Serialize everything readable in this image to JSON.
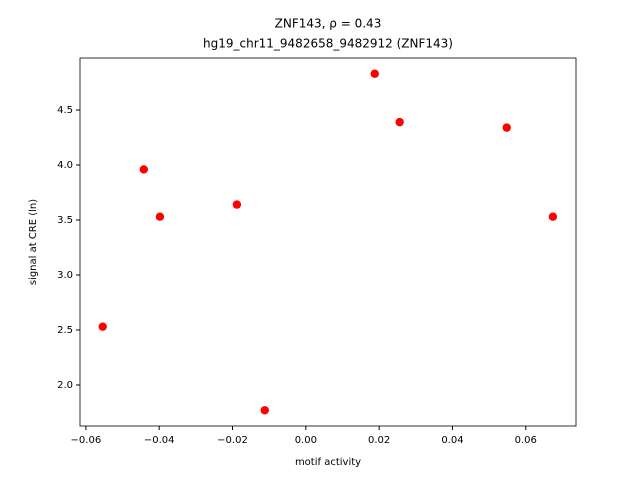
{
  "chart_data": {
    "type": "scatter",
    "title": "ZNF143, ρ = 0.43",
    "subtitle": "hg19_chr11_9482658_9482912 (ZNF143)",
    "x_label": "motif activity",
    "y_label": "signal at CRE (ln)",
    "color": "#ff0000",
    "x": [
      -0.0554,
      -0.0442,
      -0.0398,
      -0.0188,
      -0.0112,
      0.0188,
      0.0256,
      0.0548,
      0.0674
    ],
    "values": [
      2.53,
      3.96,
      3.53,
      3.64,
      1.77,
      4.83,
      4.39,
      4.34,
      3.53
    ],
    "xlim": [
      -0.0616,
      0.0737
    ],
    "ylim": [
      1.627,
      4.973
    ],
    "xticks": [
      {
        "value": -0.06,
        "label": "−0.06"
      },
      {
        "value": -0.04,
        "label": "−0.04"
      },
      {
        "value": -0.02,
        "label": "−0.02"
      },
      {
        "value": 0,
        "label": "0.00"
      },
      {
        "value": 0.02,
        "label": "0.02"
      },
      {
        "value": 0.04,
        "label": "0.04"
      },
      {
        "value": 0.06,
        "label": "0.06"
      }
    ],
    "yticks": [
      {
        "value": 2,
        "label": "2.0"
      },
      2.5,
      {
        "value": 3,
        "label": "3.0"
      },
      3.5,
      {
        "value": 4,
        "label": "4.0"
      },
      4.5
    ],
    "grid": false
  }
}
